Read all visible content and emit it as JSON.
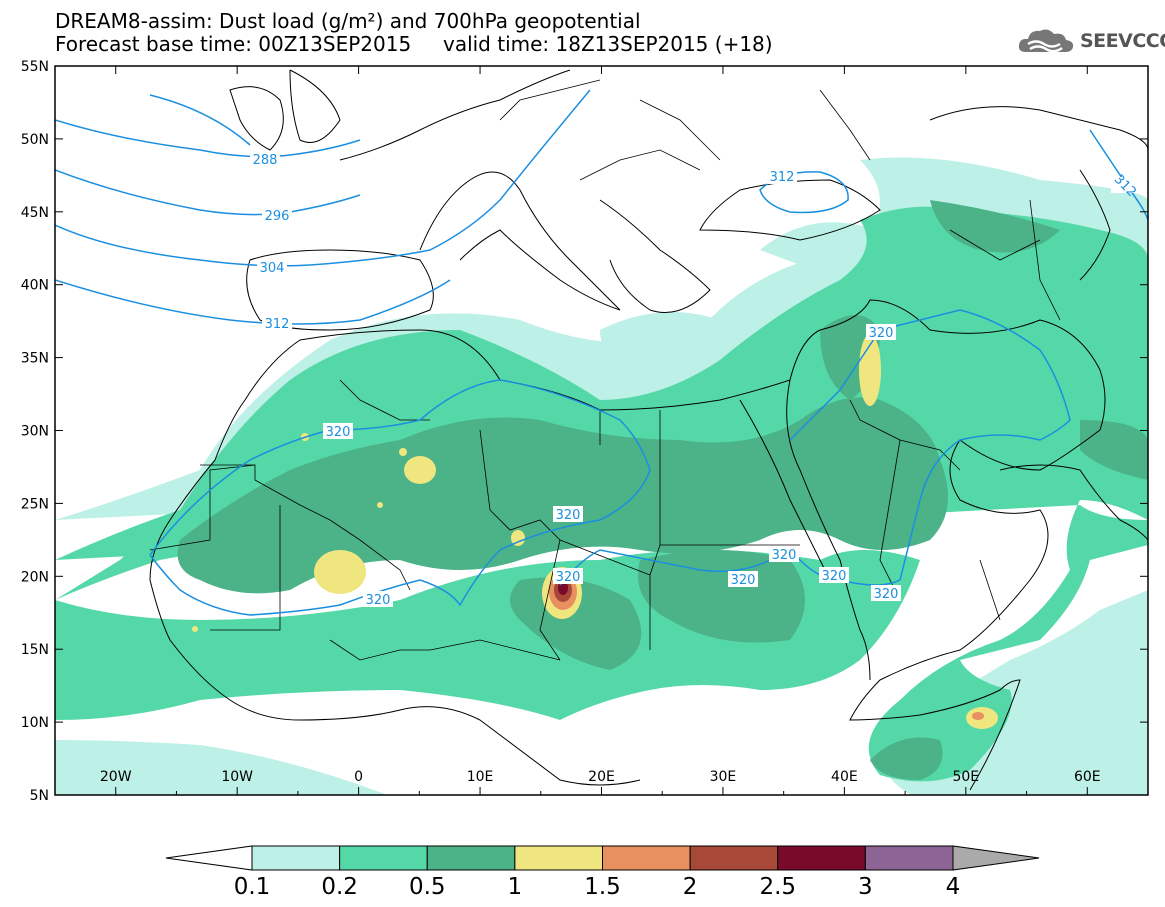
{
  "header": {
    "title_line1": "DREAM8-assim: Dust load (g/m²) and 700hPa geopotential",
    "title_line2": "Forecast base time: 00Z13SEP2015     valid time: 18Z13SEP2015 (+18)"
  },
  "logo": {
    "text": "SEEVCCC",
    "icon": "cloud-logo-icon"
  },
  "map": {
    "lon_range": [
      -25,
      65
    ],
    "lat_range": [
      5,
      55
    ],
    "lat_ticks": [
      "55N",
      "50N",
      "45N",
      "40N",
      "35N",
      "30N",
      "25N",
      "20N",
      "15N",
      "10N",
      "5N"
    ],
    "lon_ticks": [
      "20W",
      "10W",
      "0",
      "10E",
      "20E",
      "30E",
      "40E",
      "50E",
      "60E"
    ]
  },
  "contours": {
    "labels": [
      "288",
      "296",
      "304",
      "312",
      "312",
      "312",
      "320",
      "320",
      "320",
      "320",
      "320",
      "320",
      "320",
      "320",
      "320"
    ]
  },
  "colorbar": {
    "labels": [
      "0.1",
      "0.2",
      "0.5",
      "1",
      "1.5",
      "2",
      "2.5",
      "3",
      "4"
    ],
    "colors": [
      "#bdf0e6",
      "#55d8a8",
      "#4cb287",
      "#f0e680",
      "#e89060",
      "#a84838",
      "#7a0a2a",
      "#8c6496",
      "#aaaaaa"
    ]
  },
  "colors": {
    "contour": "#1a8fe0",
    "dust_low": "#bdf0e6",
    "dust_mid": "#55d8a8",
    "dust_high": "#4cb287",
    "dust_peak": "#f0e680"
  }
}
